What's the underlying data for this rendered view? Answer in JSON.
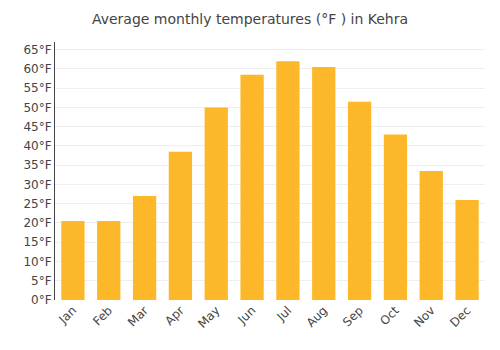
{
  "chart_data": {
    "type": "bar",
    "title": "Average monthly temperatures (°F ) in Kehra",
    "categories": [
      "Jan",
      "Feb",
      "Mar",
      "Apr",
      "May",
      "Jun",
      "Jul",
      "Aug",
      "Sep",
      "Oct",
      "Nov",
      "Dec"
    ],
    "values": [
      20.5,
      20.5,
      27,
      38.5,
      50,
      58.5,
      62,
      60.5,
      51.5,
      43,
      33.5,
      26
    ],
    "color": "#FDB82A",
    "ylim": [
      0,
      67
    ],
    "yticks": [
      {
        "value": 0,
        "label": "0°F"
      },
      {
        "value": 5,
        "label": "5°F"
      },
      {
        "value": 10,
        "label": "10°F"
      },
      {
        "value": 15,
        "label": "15°F"
      },
      {
        "value": 20,
        "label": "20°F"
      },
      {
        "value": 25,
        "label": "25°F"
      },
      {
        "value": 30,
        "label": "30°F"
      },
      {
        "value": 35,
        "label": "35°F"
      },
      {
        "value": 40,
        "label": "40°F"
      },
      {
        "value": 45,
        "label": "45°F"
      },
      {
        "value": 50,
        "label": "50°F"
      },
      {
        "value": 55,
        "label": "55°F"
      },
      {
        "value": 60,
        "label": "60°F"
      },
      {
        "value": 65,
        "label": "65°F"
      }
    ],
    "grid": true
  }
}
